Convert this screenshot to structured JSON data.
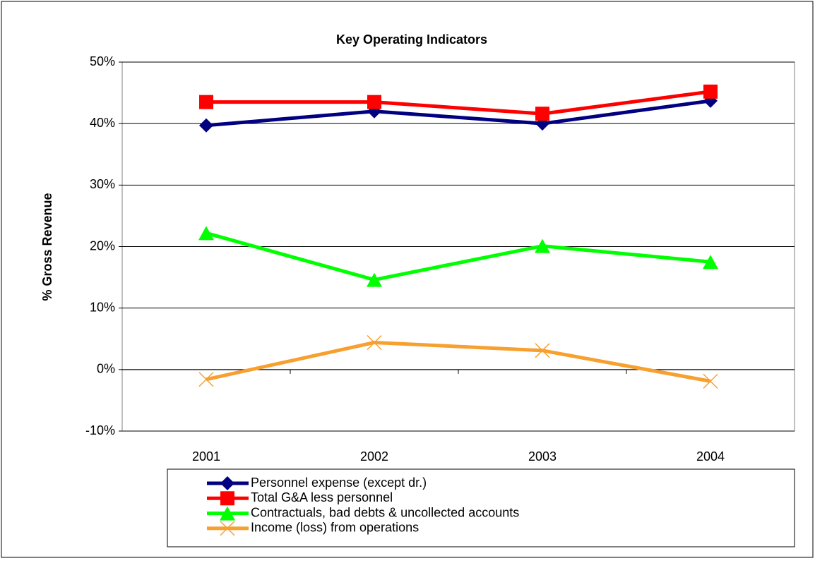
{
  "chart_data": {
    "type": "line",
    "title": "Key Operating Indicators",
    "y_label": "% Gross Revenue",
    "categories": [
      "2001",
      "2002",
      "2003",
      "2004"
    ],
    "series": [
      {
        "name": "Personnel expense (except dr.)",
        "color": "#000080",
        "marker": "diamond",
        "values": [
          39.7,
          42.0,
          40.0,
          43.7
        ]
      },
      {
        "name": "Total G&A less personnel",
        "color": "#ff0000",
        "marker": "square",
        "values": [
          43.5,
          43.5,
          41.6,
          45.2
        ]
      },
      {
        "name": "Contractuals, bad debts & uncollected accounts",
        "color": "#00ff00",
        "marker": "triangle",
        "values": [
          22.2,
          14.6,
          20.1,
          17.5
        ]
      },
      {
        "name": "Income (loss) from operations",
        "color": "#f7a030",
        "marker": "x",
        "values": [
          -1.6,
          4.4,
          3.1,
          -1.9
        ]
      }
    ],
    "ylim": [
      -10,
      50
    ],
    "yticks": [
      {
        "value": -10,
        "label": "-10%"
      },
      {
        "value": 0,
        "label": "0%"
      },
      {
        "value": 10,
        "label": "10%"
      },
      {
        "value": 20,
        "label": "20%"
      },
      {
        "value": 30,
        "label": "30%"
      },
      {
        "value": 40,
        "label": "40%"
      },
      {
        "value": 50,
        "label": "50%"
      }
    ],
    "grid": true,
    "legend": "bottom"
  }
}
